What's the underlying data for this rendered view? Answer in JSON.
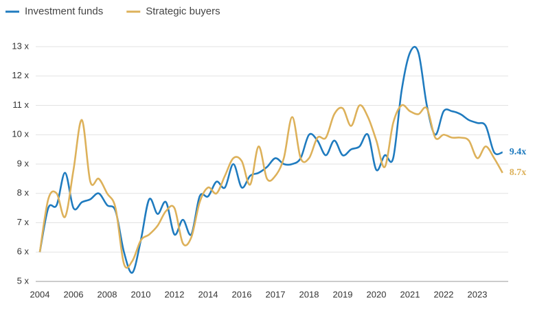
{
  "chart_data": {
    "type": "line",
    "categories": [
      "2004",
      null,
      null,
      null,
      "2006",
      null,
      null,
      null,
      "2008",
      null,
      null,
      null,
      "2010",
      null,
      null,
      null,
      "2012",
      null,
      null,
      null,
      "2014",
      null,
      null,
      null,
      "2016",
      null,
      null,
      null,
      "2017",
      null,
      null,
      null,
      "2018",
      null,
      null,
      null,
      "2019",
      null,
      null,
      null,
      "2020",
      null,
      null,
      null,
      "2021",
      null,
      null,
      null,
      "2022",
      null,
      null,
      null,
      "2023",
      null,
      null,
      null
    ],
    "series": [
      {
        "name": "Investment funds",
        "color": "#1f7bbf",
        "end_label": "9.4x",
        "values": [
          6.0,
          7.5,
          7.6,
          8.7,
          7.5,
          7.7,
          7.8,
          8.0,
          7.6,
          7.4,
          6.0,
          5.3,
          6.4,
          7.8,
          7.3,
          7.7,
          6.6,
          7.1,
          6.6,
          7.9,
          7.9,
          8.4,
          8.2,
          9.0,
          8.2,
          8.6,
          8.7,
          8.9,
          9.2,
          9.0,
          9.0,
          9.2,
          10.0,
          9.8,
          9.3,
          9.8,
          9.3,
          9.5,
          9.6,
          10.0,
          8.8,
          9.3,
          9.2,
          11.5,
          12.8,
          12.8,
          11.0,
          10.0,
          10.8,
          10.8,
          10.7,
          10.5,
          10.4,
          10.3,
          9.4,
          9.4
        ]
      },
      {
        "name": "Strategic buyers",
        "color": "#ddb15a",
        "end_label": "8.7x",
        "values": [
          6.0,
          7.8,
          8.0,
          7.2,
          8.8,
          10.5,
          8.4,
          8.5,
          8.0,
          7.5,
          5.6,
          5.7,
          6.4,
          6.6,
          6.9,
          7.4,
          7.5,
          6.3,
          6.5,
          7.7,
          8.2,
          8.0,
          8.6,
          9.2,
          9.1,
          8.3,
          9.6,
          8.5,
          8.6,
          9.2,
          10.6,
          9.2,
          9.2,
          9.9,
          9.9,
          10.7,
          10.9,
          10.3,
          11.0,
          10.6,
          9.8,
          8.9,
          10.4,
          11.0,
          10.8,
          10.7,
          10.9,
          9.9,
          10.0,
          9.9,
          9.9,
          9.8,
          9.2,
          9.6,
          9.2,
          8.7
        ]
      }
    ],
    "ylim": [
      5,
      13
    ],
    "yticks": [
      {
        "value": 5,
        "label": "5 x"
      },
      {
        "value": 6,
        "label": "6 x"
      },
      {
        "value": 7,
        "label": "7 x"
      },
      {
        "value": 8,
        "label": "8 x"
      },
      {
        "value": 9,
        "label": "9 x"
      },
      {
        "value": 10,
        "label": "10 x"
      },
      {
        "value": 11,
        "label": "11 x"
      },
      {
        "value": 12,
        "label": "12 x"
      },
      {
        "value": 13,
        "label": "13 x"
      }
    ],
    "grid": true,
    "legend": "top-left"
  }
}
